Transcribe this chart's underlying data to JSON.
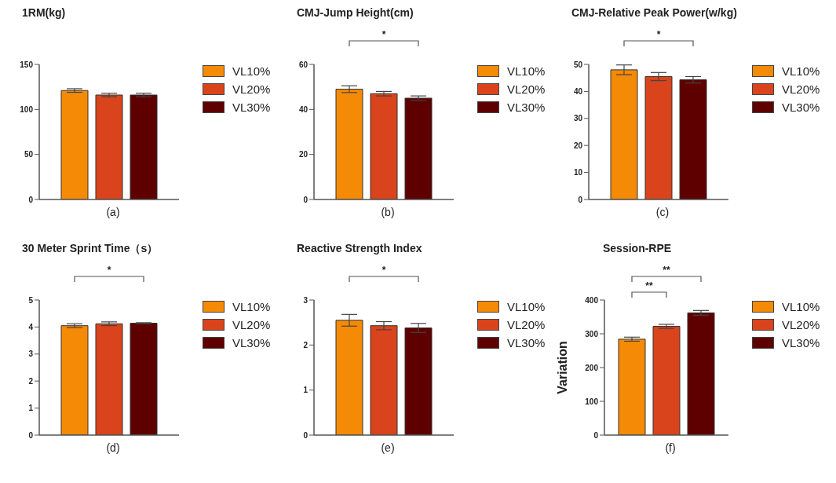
{
  "chart_data": [
    {
      "type": "bar",
      "title": "1RM(kg)",
      "xlabel": "(a)",
      "categories": [
        null
      ],
      "legend": "right",
      "ylim": [
        0,
        150
      ],
      "yticks": [
        0,
        50,
        100,
        150
      ],
      "series": [
        {
          "name": "VL10%",
          "color": "#f58a07",
          "values": [
            121
          ],
          "errors": [
            2
          ]
        },
        {
          "name": "VL20%",
          "color": "#d9441c",
          "values": [
            116
          ],
          "errors": [
            2
          ]
        },
        {
          "name": "VL30%",
          "color": "#5e0000",
          "values": [
            116
          ],
          "errors": [
            2
          ]
        }
      ]
    },
    {
      "type": "bar",
      "title": "CMJ-Jump Height(cm)",
      "xlabel": "(b)",
      "categories": [
        null
      ],
      "legend": "right",
      "ylim": [
        0,
        60
      ],
      "yticks": [
        0,
        20,
        40,
        60
      ],
      "annotations": [
        "*"
      ],
      "series": [
        {
          "name": "VL10%",
          "color": "#f58a07",
          "values": [
            49
          ],
          "errors": [
            1.5
          ]
        },
        {
          "name": "VL20%",
          "color": "#d9441c",
          "values": [
            47
          ],
          "errors": [
            1
          ]
        },
        {
          "name": "VL30%",
          "color": "#5e0000",
          "values": [
            45
          ],
          "errors": [
            1
          ]
        }
      ]
    },
    {
      "type": "bar",
      "title": "CMJ-Relative Peak Power(w/kg)",
      "xlabel": "(c)",
      "categories": [
        null
      ],
      "legend": "right",
      "ylim": [
        0,
        50
      ],
      "yticks": [
        0,
        10,
        20,
        30,
        40,
        50
      ],
      "annotations": [
        "*"
      ],
      "series": [
        {
          "name": "VL10%",
          "color": "#f58a07",
          "values": [
            48
          ],
          "errors": [
            1.8
          ]
        },
        {
          "name": "VL20%",
          "color": "#d9441c",
          "values": [
            45.5
          ],
          "errors": [
            1.5
          ]
        },
        {
          "name": "VL30%",
          "color": "#5e0000",
          "values": [
            44.3
          ],
          "errors": [
            1.2
          ]
        }
      ]
    },
    {
      "type": "bar",
      "title": "30 Meter Sprint Time（s）",
      "xlabel": "(d)",
      "categories": [
        null
      ],
      "legend": "right",
      "ylim": [
        0,
        5
      ],
      "yticks": [
        0,
        1,
        2,
        3,
        4,
        5
      ],
      "annotations": [
        "*"
      ],
      "series": [
        {
          "name": "VL10%",
          "color": "#f58a07",
          "values": [
            4.05
          ],
          "errors": [
            0.07
          ]
        },
        {
          "name": "VL20%",
          "color": "#d9441c",
          "values": [
            4.12
          ],
          "errors": [
            0.07
          ]
        },
        {
          "name": "VL30%",
          "color": "#5e0000",
          "values": [
            4.14
          ],
          "errors": [
            0.02
          ]
        }
      ]
    },
    {
      "type": "bar",
      "title": "Reactive Strength Index",
      "xlabel": "(e)",
      "categories": [
        null
      ],
      "legend": "right",
      "ylim": [
        0,
        3
      ],
      "yticks": [
        0,
        1,
        2,
        3
      ],
      "annotations": [
        "*"
      ],
      "series": [
        {
          "name": "VL10%",
          "color": "#f58a07",
          "values": [
            2.55
          ],
          "errors": [
            0.13
          ]
        },
        {
          "name": "VL20%",
          "color": "#d9441c",
          "values": [
            2.43
          ],
          "errors": [
            0.09
          ]
        },
        {
          "name": "VL30%",
          "color": "#5e0000",
          "values": [
            2.38
          ],
          "errors": [
            0.1
          ]
        }
      ]
    },
    {
      "type": "bar",
      "title": "Session-RPE",
      "xlabel": "(f)",
      "ylabel": "Variation",
      "categories": [
        null
      ],
      "legend": "right",
      "ylim": [
        0,
        400
      ],
      "yticks": [
        0,
        100,
        200,
        300,
        400
      ],
      "annotations": [
        "**",
        "**"
      ],
      "series": [
        {
          "name": "VL10%",
          "color": "#f58a07",
          "values": [
            284
          ],
          "errors": [
            6
          ]
        },
        {
          "name": "VL20%",
          "color": "#d9441c",
          "values": [
            322
          ],
          "errors": [
            6
          ]
        },
        {
          "name": "VL30%",
          "color": "#5e0000",
          "values": [
            362
          ],
          "errors": [
            7
          ]
        }
      ]
    }
  ]
}
